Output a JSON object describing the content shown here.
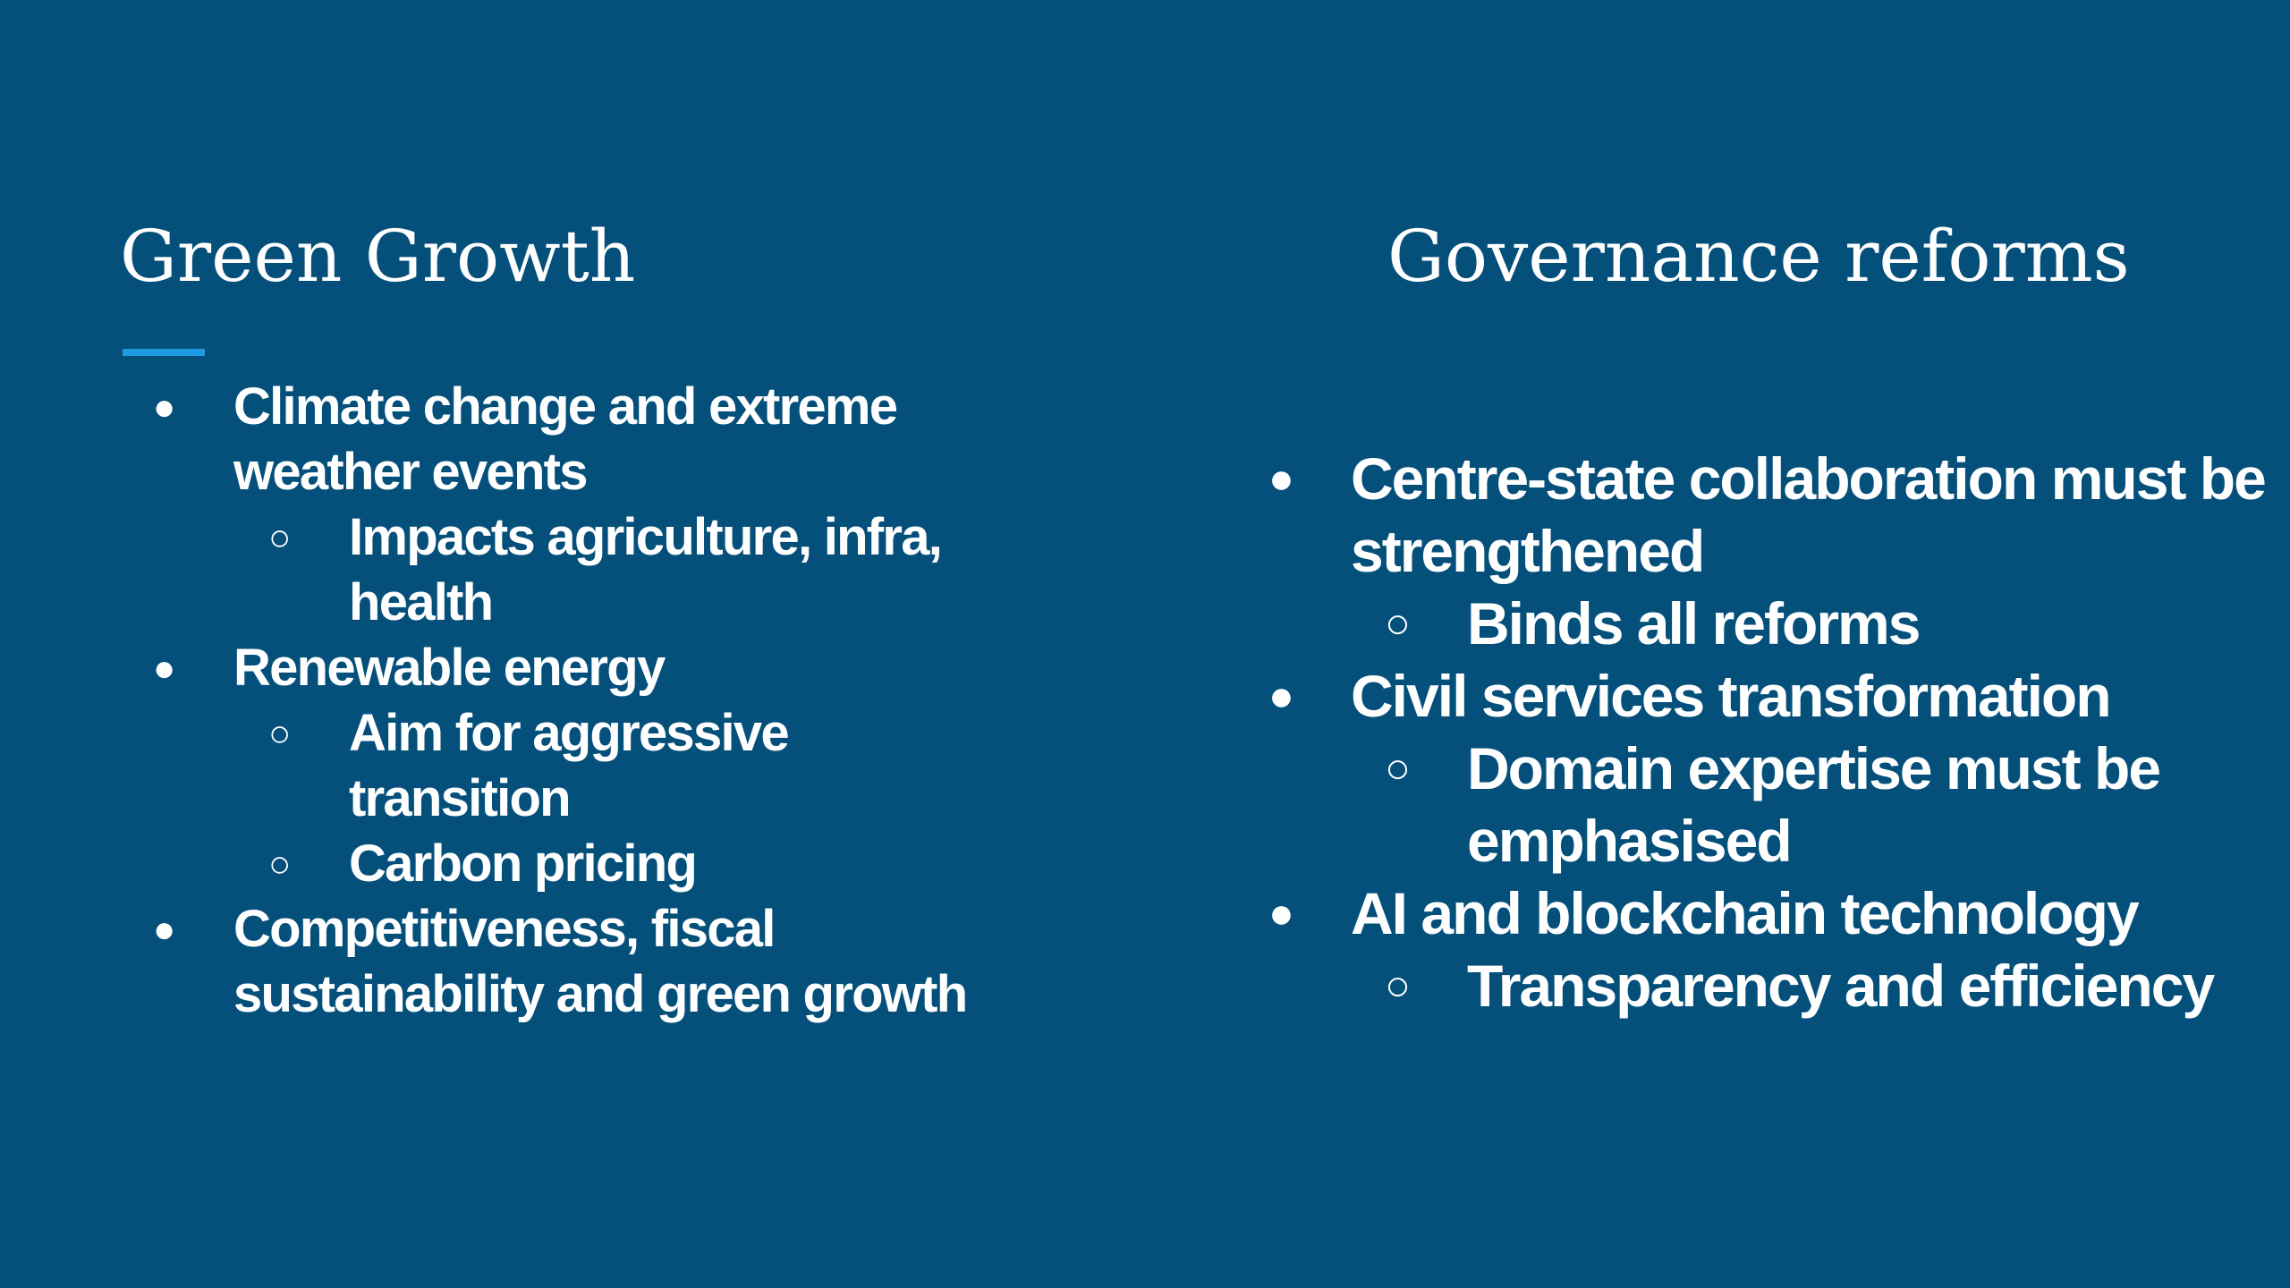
{
  "left": {
    "title": "Green Growth",
    "items": [
      {
        "text": "Climate change and extreme weather events",
        "sub": [
          "Impacts agriculture, infra, health"
        ]
      },
      {
        "text": "Renewable energy",
        "sub": [
          "Aim for aggressive transition",
          "Carbon pricing"
        ]
      },
      {
        "text": "Competitiveness, fiscal sustainability and green growth",
        "sub": []
      }
    ]
  },
  "right": {
    "title": "Governance reforms",
    "items": [
      {
        "text": "Centre-state collaboration must be strengthened",
        "sub": [
          "Binds all reforms"
        ]
      },
      {
        "text": "Civil services transformation",
        "sub": [
          "Domain expertise must be emphasised"
        ]
      },
      {
        "text": "AI and blockchain technology",
        "sub": [
          "Transparency and efficiency"
        ]
      }
    ]
  }
}
